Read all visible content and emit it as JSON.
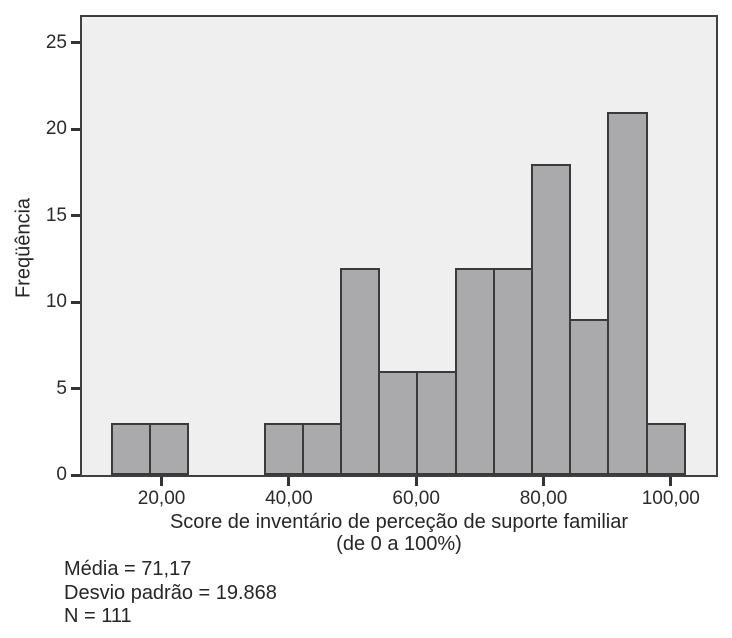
{
  "figure": {
    "y_axis_label": "Freqüência",
    "x_axis_label_line1": "Score de inventário de perceção de suporte familiar",
    "x_axis_label_line2": "(de 0 a 100%)",
    "stats_lines": [
      "Média = 71,17",
      "Desvio padrão = 19.868",
      "N = 111"
    ]
  },
  "chart_data": {
    "type": "bar",
    "subtype": "histogram",
    "title": "",
    "xlabel": "Score de inventário de perceção de suporte familiar (de 0 a 100%)",
    "ylabel": "Freqüência",
    "bin_edges": [
      12.2,
      18.2,
      24.2,
      30.2,
      36.2,
      42.2,
      48.2,
      54.2,
      60.2,
      66.2,
      72.2,
      78.2,
      84.2,
      90.2,
      96.2,
      102.2
    ],
    "counts": [
      3,
      3,
      0,
      0,
      3,
      3,
      12,
      6,
      6,
      12,
      12,
      18,
      9,
      21,
      3
    ],
    "x_tick_values": [
      20,
      40,
      60,
      80,
      100
    ],
    "x_tick_labels": [
      "20,00",
      "40,00",
      "60,00",
      "80,00",
      "100,00"
    ],
    "y_tick_values": [
      0,
      5,
      10,
      15,
      20,
      25
    ],
    "y_tick_labels": [
      "0",
      "5",
      "10",
      "15",
      "20",
      "25"
    ],
    "xlim": [
      7.5,
      107.1
    ],
    "ylim": [
      0,
      26.5
    ],
    "grid": false,
    "legend_position": "none",
    "n": 111,
    "mean": "71,17",
    "std_dev": "19.868",
    "colors": {
      "bar_fill": "#aaaaad",
      "bar_border": "#3a3a3a",
      "plot_background": "#efefef",
      "axis": "#333333",
      "text": "#262626"
    }
  }
}
